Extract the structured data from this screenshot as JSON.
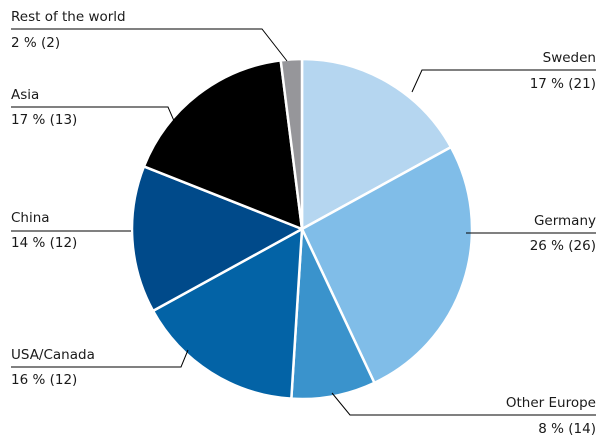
{
  "chart_data": {
    "type": "pie",
    "title": "",
    "slices": [
      {
        "name": "Sweden",
        "value": 17,
        "label": "17 % (21)",
        "color": "#b5d6f0"
      },
      {
        "name": "Germany",
        "value": 26,
        "label": "26 % (26)",
        "color": "#80bde8"
      },
      {
        "name": "Other Europe",
        "value": 8,
        "label": "8 % (14)",
        "color": "#3a93cc"
      },
      {
        "name": "USA/Canada",
        "value": 16,
        "label": "16 % (12)",
        "color": "#0363a6"
      },
      {
        "name": "China",
        "value": 14,
        "label": "14 % (12)",
        "color": "#004a8a"
      },
      {
        "name": "Asia",
        "value": 17,
        "label": "17 % (13)",
        "color": "#000000"
      },
      {
        "name": "Rest of the world",
        "value": 2,
        "label": "2 % (2)",
        "color": "#96969a"
      }
    ]
  }
}
